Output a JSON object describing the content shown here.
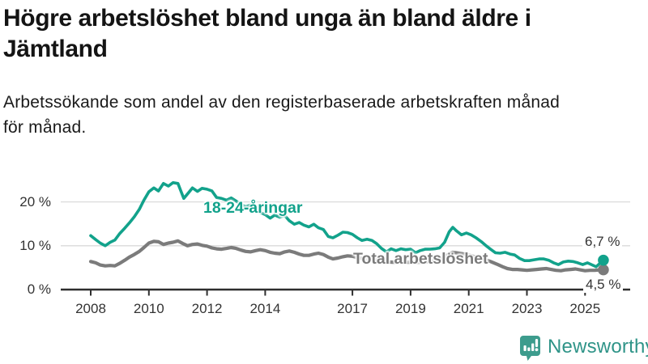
{
  "chart_data": {
    "type": "line",
    "title": "Högre arbetslöshet bland unga än bland äldre i\nJämtland",
    "subtitle": "Arbetssökande som andel av den registerbaserade arbetskraften månad\nför månad.",
    "unit": "%",
    "grid": "horizontal-only",
    "legend_position": "inline-labels-on-lines",
    "ylim": [
      0,
      26.5
    ],
    "xlim": [
      2007,
      2026.5
    ],
    "y_ticks": [
      {
        "value": 0,
        "label": "0 %"
      },
      {
        "value": 10,
        "label": "10 %"
      },
      {
        "value": 20,
        "label": "20 %"
      }
    ],
    "x_ticks": [
      {
        "year": 2008,
        "label": "2008"
      },
      {
        "year": 2010,
        "label": "2010"
      },
      {
        "year": 2012,
        "label": "2012"
      },
      {
        "year": 2014,
        "label": "2014"
      },
      {
        "year": 2017,
        "label": "2017"
      },
      {
        "year": 2019,
        "label": "2019"
      },
      {
        "year": 2021,
        "label": "2021"
      },
      {
        "year": 2023,
        "label": "2023"
      },
      {
        "year": 2025,
        "label": "2025"
      }
    ],
    "series": [
      {
        "name": "18-24-åringar",
        "color": "#12a28b",
        "end_label": "6,7 %",
        "end_value": 6.7,
        "points": [
          [
            2008.0,
            12.3
          ],
          [
            2008.17,
            11.4
          ],
          [
            2008.33,
            10.6
          ],
          [
            2008.5,
            10.0
          ],
          [
            2008.67,
            10.8
          ],
          [
            2008.83,
            11.3
          ],
          [
            2009.0,
            12.8
          ],
          [
            2009.17,
            14.0
          ],
          [
            2009.33,
            15.2
          ],
          [
            2009.5,
            16.6
          ],
          [
            2009.67,
            18.3
          ],
          [
            2009.83,
            20.4
          ],
          [
            2010.0,
            22.3
          ],
          [
            2010.17,
            23.2
          ],
          [
            2010.33,
            22.5
          ],
          [
            2010.5,
            24.2
          ],
          [
            2010.67,
            23.6
          ],
          [
            2010.83,
            24.4
          ],
          [
            2011.0,
            24.2
          ],
          [
            2011.1,
            22.5
          ],
          [
            2011.2,
            20.8
          ],
          [
            2011.35,
            22.0
          ],
          [
            2011.5,
            23.2
          ],
          [
            2011.67,
            22.4
          ],
          [
            2011.83,
            23.1
          ],
          [
            2012.0,
            22.9
          ],
          [
            2012.17,
            22.5
          ],
          [
            2012.33,
            21.0
          ],
          [
            2012.5,
            20.8
          ],
          [
            2012.67,
            20.4
          ],
          [
            2012.83,
            20.9
          ],
          [
            2013.0,
            20.2
          ],
          [
            2013.17,
            19.4
          ],
          [
            2013.33,
            18.9
          ],
          [
            2013.5,
            19.3
          ],
          [
            2013.67,
            18.3
          ],
          [
            2013.83,
            17.6
          ],
          [
            2014.0,
            17.1
          ],
          [
            2014.17,
            16.3
          ],
          [
            2014.33,
            17.0
          ],
          [
            2014.5,
            16.5
          ],
          [
            2014.67,
            16.9
          ],
          [
            2014.83,
            15.7
          ],
          [
            2015.0,
            14.9
          ],
          [
            2015.17,
            15.3
          ],
          [
            2015.33,
            14.7
          ],
          [
            2015.5,
            14.3
          ],
          [
            2015.67,
            14.9
          ],
          [
            2015.83,
            14.1
          ],
          [
            2016.0,
            13.7
          ],
          [
            2016.17,
            12.1
          ],
          [
            2016.33,
            11.8
          ],
          [
            2016.5,
            12.4
          ],
          [
            2016.67,
            13.1
          ],
          [
            2016.83,
            13.0
          ],
          [
            2017.0,
            12.6
          ],
          [
            2017.17,
            11.8
          ],
          [
            2017.33,
            11.2
          ],
          [
            2017.5,
            11.5
          ],
          [
            2017.67,
            11.2
          ],
          [
            2017.83,
            10.5
          ],
          [
            2018.0,
            9.4
          ],
          [
            2018.17,
            8.6
          ],
          [
            2018.33,
            9.3
          ],
          [
            2018.5,
            8.9
          ],
          [
            2018.67,
            9.3
          ],
          [
            2018.83,
            9.1
          ],
          [
            2019.0,
            9.2
          ],
          [
            2019.17,
            8.4
          ],
          [
            2019.33,
            8.9
          ],
          [
            2019.5,
            9.2
          ],
          [
            2019.67,
            9.2
          ],
          [
            2019.83,
            9.3
          ],
          [
            2020.0,
            9.5
          ],
          [
            2020.17,
            10.8
          ],
          [
            2020.33,
            13.2
          ],
          [
            2020.45,
            14.2
          ],
          [
            2020.58,
            13.4
          ],
          [
            2020.75,
            12.5
          ],
          [
            2020.92,
            12.9
          ],
          [
            2021.08,
            12.5
          ],
          [
            2021.25,
            11.8
          ],
          [
            2021.42,
            11.0
          ],
          [
            2021.58,
            10.1
          ],
          [
            2021.75,
            9.2
          ],
          [
            2021.92,
            8.4
          ],
          [
            2022.08,
            8.3
          ],
          [
            2022.25,
            8.5
          ],
          [
            2022.42,
            8.1
          ],
          [
            2022.58,
            7.9
          ],
          [
            2022.75,
            7.1
          ],
          [
            2022.92,
            6.6
          ],
          [
            2023.08,
            6.6
          ],
          [
            2023.25,
            6.8
          ],
          [
            2023.42,
            7.0
          ],
          [
            2023.58,
            7.0
          ],
          [
            2023.75,
            6.7
          ],
          [
            2023.92,
            6.1
          ],
          [
            2024.08,
            5.7
          ],
          [
            2024.25,
            6.3
          ],
          [
            2024.42,
            6.5
          ],
          [
            2024.58,
            6.4
          ],
          [
            2024.75,
            6.1
          ],
          [
            2024.92,
            5.7
          ],
          [
            2025.08,
            6.1
          ],
          [
            2025.25,
            5.6
          ],
          [
            2025.38,
            5.2
          ],
          [
            2025.63,
            6.7
          ]
        ]
      },
      {
        "name": "Total arbetslöshet",
        "color": "#7b7b7b",
        "end_label": "4,5 %",
        "end_value": 4.5,
        "points": [
          [
            2008.0,
            6.4
          ],
          [
            2008.17,
            6.1
          ],
          [
            2008.33,
            5.6
          ],
          [
            2008.5,
            5.4
          ],
          [
            2008.67,
            5.5
          ],
          [
            2008.83,
            5.4
          ],
          [
            2009.0,
            6.0
          ],
          [
            2009.17,
            6.7
          ],
          [
            2009.33,
            7.4
          ],
          [
            2009.5,
            8.0
          ],
          [
            2009.67,
            8.7
          ],
          [
            2009.83,
            9.6
          ],
          [
            2010.0,
            10.6
          ],
          [
            2010.17,
            11.0
          ],
          [
            2010.33,
            10.9
          ],
          [
            2010.5,
            10.3
          ],
          [
            2010.67,
            10.6
          ],
          [
            2010.83,
            10.8
          ],
          [
            2011.0,
            11.1
          ],
          [
            2011.17,
            10.5
          ],
          [
            2011.33,
            10.0
          ],
          [
            2011.5,
            10.3
          ],
          [
            2011.67,
            10.4
          ],
          [
            2011.83,
            10.1
          ],
          [
            2012.0,
            9.9
          ],
          [
            2012.17,
            9.5
          ],
          [
            2012.33,
            9.3
          ],
          [
            2012.5,
            9.2
          ],
          [
            2012.67,
            9.4
          ],
          [
            2012.83,
            9.6
          ],
          [
            2013.0,
            9.4
          ],
          [
            2013.17,
            9.0
          ],
          [
            2013.33,
            8.7
          ],
          [
            2013.5,
            8.6
          ],
          [
            2013.67,
            8.9
          ],
          [
            2013.83,
            9.1
          ],
          [
            2014.0,
            8.9
          ],
          [
            2014.17,
            8.5
          ],
          [
            2014.33,
            8.3
          ],
          [
            2014.5,
            8.2
          ],
          [
            2014.67,
            8.6
          ],
          [
            2014.83,
            8.8
          ],
          [
            2015.0,
            8.5
          ],
          [
            2015.17,
            8.1
          ],
          [
            2015.33,
            7.8
          ],
          [
            2015.5,
            7.8
          ],
          [
            2015.67,
            8.1
          ],
          [
            2015.83,
            8.3
          ],
          [
            2016.0,
            8.0
          ],
          [
            2016.17,
            7.4
          ],
          [
            2016.33,
            7.0
          ],
          [
            2016.5,
            7.2
          ],
          [
            2016.67,
            7.5
          ],
          [
            2016.83,
            7.7
          ],
          [
            2017.0,
            7.6
          ],
          [
            2017.25,
            7.2
          ],
          [
            2017.5,
            6.9
          ],
          [
            2017.75,
            6.8
          ],
          [
            2018.0,
            6.6
          ],
          [
            2018.25,
            6.3
          ],
          [
            2018.5,
            6.2
          ],
          [
            2018.75,
            6.3
          ],
          [
            2019.0,
            6.2
          ],
          [
            2019.25,
            6.2
          ],
          [
            2019.5,
            6.3
          ],
          [
            2019.75,
            6.5
          ],
          [
            2020.0,
            6.8
          ],
          [
            2020.25,
            7.8
          ],
          [
            2020.45,
            8.5
          ],
          [
            2020.65,
            8.3
          ],
          [
            2020.85,
            8.1
          ],
          [
            2021.05,
            7.8
          ],
          [
            2021.25,
            7.4
          ],
          [
            2021.5,
            7.0
          ],
          [
            2021.75,
            6.4
          ],
          [
            2022.0,
            5.7
          ],
          [
            2022.17,
            5.2
          ],
          [
            2022.33,
            4.8
          ],
          [
            2022.5,
            4.6
          ],
          [
            2022.67,
            4.6
          ],
          [
            2022.83,
            4.5
          ],
          [
            2023.0,
            4.4
          ],
          [
            2023.17,
            4.5
          ],
          [
            2023.33,
            4.6
          ],
          [
            2023.5,
            4.7
          ],
          [
            2023.67,
            4.8
          ],
          [
            2023.83,
            4.6
          ],
          [
            2024.0,
            4.4
          ],
          [
            2024.17,
            4.3
          ],
          [
            2024.33,
            4.5
          ],
          [
            2024.5,
            4.6
          ],
          [
            2024.67,
            4.7
          ],
          [
            2024.83,
            4.5
          ],
          [
            2025.0,
            4.3
          ],
          [
            2025.17,
            4.4
          ],
          [
            2025.33,
            4.4
          ],
          [
            2025.5,
            4.5
          ],
          [
            2025.63,
            4.5
          ]
        ]
      }
    ],
    "colors": {
      "axis_line": "#2e2e2e",
      "gridline": "#dadada",
      "tick_text": "#333333",
      "title_text": "#141414"
    }
  },
  "footer": {
    "brand": "Newsworthy",
    "brand_color": "#2f9488",
    "logo_color": "#3d9c8d"
  }
}
